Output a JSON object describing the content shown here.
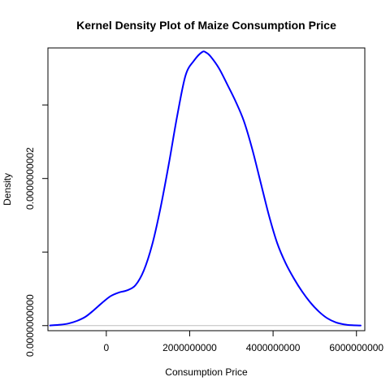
{
  "chart_data": {
    "type": "line",
    "title": "Kernel Density Plot of Maize   Consumption Price",
    "xlabel": "Consumption Price",
    "ylabel": "Density",
    "xlim": [
      -1400000000,
      6200000000
    ],
    "ylim": [
      -6.9e-12,
      3.775e-10
    ],
    "x_ticks": [
      0,
      2000000000,
      4000000000,
      6000000000
    ],
    "x_tick_labels": [
      "0",
      "2000000000",
      "4000000000",
      "6000000000"
    ],
    "y_ticks": [
      0,
      1e-10,
      2e-10,
      3e-10
    ],
    "y_tick_labels": [
      "0.0000000000",
      "",
      "0.0000000002",
      ""
    ],
    "baseline": 0,
    "line_color": "#0000ff",
    "baseline_color": "#bebebe",
    "series": [
      {
        "x": [
          -1350000000,
          -1100000000,
          -900000000,
          -700000000,
          -500000000,
          -300000000,
          -100000000,
          100000000,
          300000000,
          500000000,
          700000000,
          900000000,
          1100000000,
          1300000000,
          1500000000,
          1700000000,
          1900000000,
          2100000000,
          2300000000,
          2400000000,
          2500000000,
          2700000000,
          2900000000,
          3100000000,
          3300000000,
          3500000000,
          3700000000,
          3900000000,
          4100000000,
          4300000000,
          4500000000,
          4700000000,
          4900000000,
          5100000000,
          5300000000,
          5500000000,
          5700000000,
          5900000000,
          6100000000
        ],
        "y": [
          2e-13,
          1.2e-12,
          3e-12,
          6.5e-12,
          1.2e-11,
          2.1e-11,
          3.1e-11,
          4e-11,
          4.5e-11,
          4.8e-11,
          5.5e-11,
          7.5e-11,
          1.1e-10,
          1.6e-10,
          2.2e-10,
          2.85e-10,
          3.4e-10,
          3.6e-10,
          3.72e-10,
          3.71e-10,
          3.66e-10,
          3.5e-10,
          3.28e-10,
          3.05e-10,
          2.78e-10,
          2.4e-10,
          1.95e-10,
          1.5e-10,
          1.12e-10,
          8.5e-11,
          6.4e-11,
          4.6e-11,
          3.1e-11,
          1.9e-11,
          1e-11,
          4.5e-12,
          1.7e-12,
          5e-13,
          1e-13
        ]
      }
    ]
  }
}
